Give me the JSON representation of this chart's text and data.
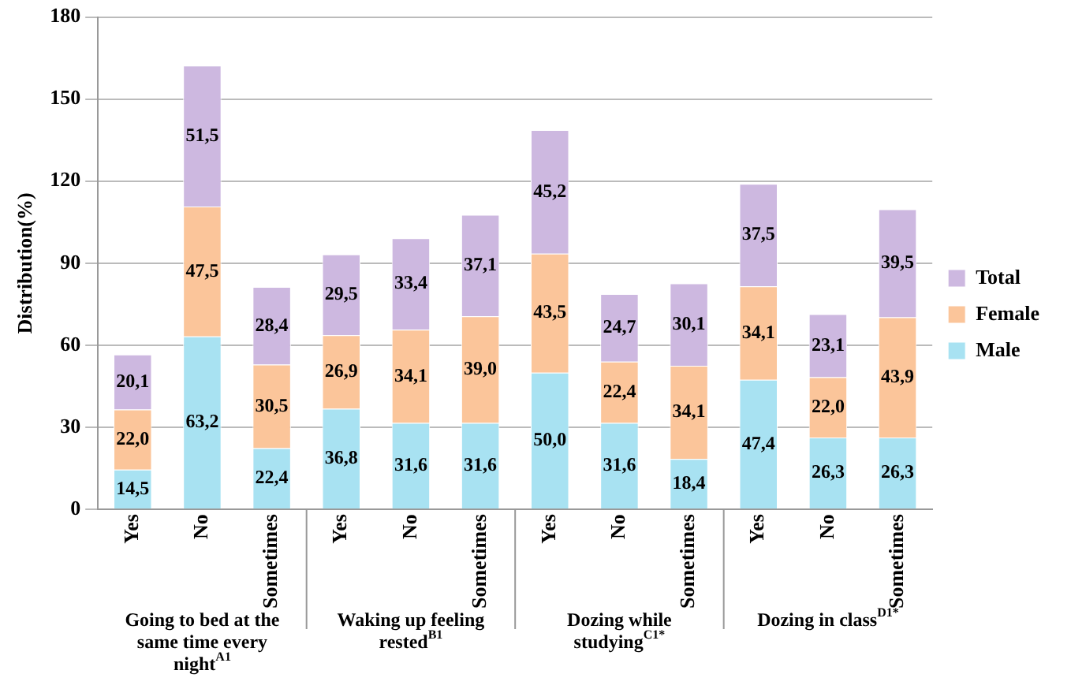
{
  "chart_data": {
    "type": "bar",
    "stacked": true,
    "ylabel": "Distribution(%)",
    "categories": [
      "Yes",
      "No",
      "Sometimes",
      "Yes",
      "No",
      "Sometimes",
      "Yes",
      "No",
      "Sometimes",
      "Yes",
      "No",
      "Sometimes"
    ],
    "series": [
      {
        "name": "Male",
        "color": "#a8e2f2",
        "values": [
          14.5,
          63.2,
          22.4,
          36.8,
          31.6,
          31.6,
          50.0,
          31.6,
          18.4,
          47.4,
          26.3,
          26.3
        ],
        "value_labels": [
          "14,5",
          "63,2",
          "22,4",
          "36,8",
          "31,6",
          "31,6",
          "50,0",
          "31,6",
          "18,4",
          "47,4",
          "26,3",
          "26,3"
        ]
      },
      {
        "name": "Female",
        "color": "#fbc59a",
        "values": [
          22.0,
          47.5,
          30.5,
          26.9,
          34.1,
          39.0,
          43.5,
          22.4,
          34.1,
          34.1,
          22.0,
          43.9
        ],
        "value_labels": [
          "22,0",
          "47,5",
          "30,5",
          "26,9",
          "34,1",
          "39,0",
          "43,5",
          "22,4",
          "34,1",
          "34,1",
          "22,0",
          "43,9"
        ]
      },
      {
        "name": "Total",
        "color": "#cdb8e0",
        "values": [
          20.1,
          51.5,
          28.4,
          29.5,
          33.4,
          37.1,
          45.2,
          24.7,
          30.1,
          37.5,
          23.1,
          39.5
        ],
        "value_labels": [
          "20,1",
          "51,5",
          "28,4",
          "29,5",
          "33,4",
          "37,1",
          "45,2",
          "24,7",
          "30,1",
          "37,5",
          "23,1",
          "39,5"
        ]
      }
    ],
    "ylim": [
      0,
      180
    ],
    "yticks": [
      0,
      30,
      60,
      90,
      120,
      150,
      180
    ],
    "grid": "y",
    "legend": "right",
    "annotations": [
      "Going to bed at the same time every night$^{A1}$",
      "Waking up feeling rested$^{B1}$",
      "Dozing while studying$^{C1*}$",
      "Dozing in class$^{D1*}$"
    ]
  }
}
